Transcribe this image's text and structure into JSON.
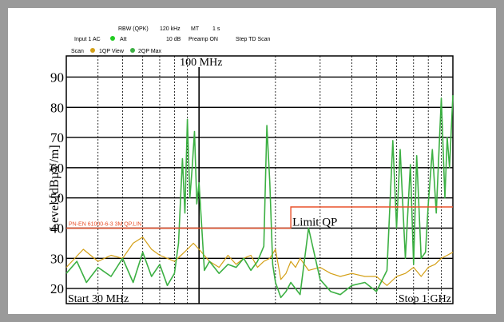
{
  "header": {
    "rbw": "RBW (QPK)",
    "rbw_value": "120 kHz",
    "mt": "MT",
    "mt_value": "1 s",
    "input": "Input 1 AC",
    "att": "Att",
    "att_value": "10 dB",
    "preamp": "Preamp ON",
    "step": "Step TD Scan"
  },
  "legend": {
    "scan": "Scan",
    "trace1": "1QP View",
    "trace2": "2QP Max"
  },
  "colors": {
    "trace1": "#d4a017",
    "trace2": "#3cb043",
    "limit": "#e8502a",
    "input_led": "#22cc22",
    "frame": "#9a9a9a"
  },
  "chart_data": {
    "type": "line",
    "title": "",
    "xlabel": "",
    "ylabel": "Level [dBµV/m]",
    "x_scale": "log",
    "xlim_mhz": [
      30,
      1000
    ],
    "ylim": [
      15,
      97
    ],
    "y_ticks": [
      20,
      30,
      40,
      50,
      60,
      70,
      80,
      90
    ],
    "marker_label": "100 MHz",
    "marker_x_mhz": 100,
    "start_label": "Start 30 MHz",
    "stop_label": "Stop 1 GHz",
    "limit_line": {
      "name": "PN-EN 61000-6-3 3M QP.LIN",
      "label": "Limit QP",
      "segments": [
        {
          "x": [
            30,
            230
          ],
          "y": 40
        },
        {
          "x": [
            230,
            1000
          ],
          "y": 47
        }
      ]
    },
    "series": [
      {
        "name": "1QP View",
        "x": [
          30,
          35,
          40,
          45,
          50,
          55,
          60,
          65,
          70,
          75,
          80,
          85,
          90,
          95,
          100,
          110,
          120,
          130,
          140,
          150,
          160,
          170,
          180,
          190,
          200,
          210,
          220,
          230,
          240,
          250,
          270,
          300,
          330,
          360,
          400,
          450,
          500,
          550,
          600,
          650,
          700,
          750,
          800,
          850,
          900,
          950,
          1000
        ],
        "y": [
          27,
          33,
          29,
          31,
          30,
          35,
          37,
          33,
          31,
          30,
          29,
          31,
          33,
          35,
          33,
          29,
          27,
          31,
          28,
          30,
          31,
          27,
          29,
          30,
          33,
          23,
          25,
          29,
          27,
          30,
          26,
          27,
          25,
          24,
          25,
          24,
          24,
          21,
          24,
          25,
          27,
          24,
          27,
          28,
          30,
          31,
          32
        ]
      },
      {
        "name": "2QP Max",
        "x": [
          30,
          33,
          36,
          40,
          45,
          50,
          55,
          60,
          65,
          70,
          75,
          80,
          83,
          86,
          88,
          90,
          92,
          94,
          96,
          98,
          100,
          105,
          110,
          120,
          130,
          140,
          150,
          160,
          170,
          180,
          185,
          190,
          195,
          200,
          210,
          220,
          230,
          250,
          270,
          300,
          330,
          360,
          400,
          450,
          500,
          550,
          580,
          600,
          620,
          650,
          680,
          700,
          720,
          750,
          780,
          800,
          830,
          860,
          900,
          930,
          950,
          970,
          1000
        ],
        "y": [
          25,
          29,
          22,
          27,
          24,
          30,
          22,
          32,
          24,
          28,
          21,
          25,
          35,
          63,
          45,
          76,
          50,
          60,
          72,
          48,
          55,
          26,
          29,
          25,
          28,
          27,
          30,
          26,
          29,
          34,
          74,
          55,
          28,
          22,
          17,
          19,
          22,
          18,
          40,
          23,
          19,
          18,
          21,
          22,
          19,
          26,
          69,
          40,
          66,
          30,
          61,
          28,
          64,
          30,
          32,
          48,
          66,
          45,
          83,
          50,
          70,
          60,
          84
        ]
      }
    ]
  }
}
